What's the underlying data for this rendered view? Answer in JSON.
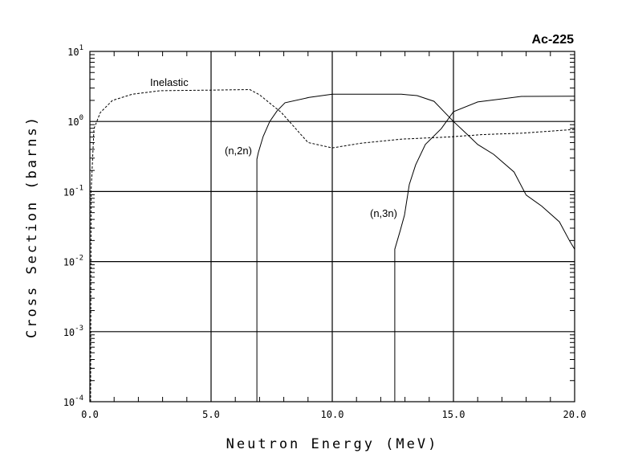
{
  "chart_data": {
    "type": "line",
    "title": "Ac-225",
    "xlabel": "Neutron Energy (MeV)",
    "ylabel": "Cross Section (barns)",
    "xlim": [
      0,
      20
    ],
    "ylim": [
      0.0001,
      10
    ],
    "yscale": "log",
    "grid": true,
    "x_ticks": [
      "0.0",
      "5.0",
      "10.0",
      "15.0",
      "20.0"
    ],
    "x_tick_values": [
      0,
      5,
      10,
      15,
      20
    ],
    "y_ticks": [
      {
        "base": "10",
        "exp": "1",
        "value": 10
      },
      {
        "base": "10",
        "exp": "0",
        "value": 1
      },
      {
        "base": "10",
        "exp": "-1",
        "value": 0.1
      },
      {
        "base": "10",
        "exp": "-2",
        "value": 0.01
      },
      {
        "base": "10",
        "exp": "-3",
        "value": 0.001
      },
      {
        "base": "10",
        "exp": "-4",
        "value": 0.0001
      }
    ],
    "series": [
      {
        "name": "Inelastic",
        "style": "dashed",
        "x": [
          0.03,
          0.05,
          0.17,
          0.43,
          0.93,
          1.75,
          2.9,
          4.9,
          6.6,
          7.0,
          7.9,
          9.0,
          10.0,
          11.2,
          12.85,
          14.8,
          16.2,
          17.8,
          20.0
        ],
        "y": [
          0.0001,
          0.1,
          0.79,
          1.34,
          2.0,
          2.45,
          2.75,
          2.8,
          2.85,
          2.4,
          1.34,
          0.5,
          0.42,
          0.49,
          0.56,
          0.6,
          0.65,
          0.68,
          0.77
        ]
      },
      {
        "name": "(n,2n)",
        "style": "solid",
        "x": [
          6.89,
          6.89,
          6.95,
          7.15,
          7.42,
          7.72,
          8.05,
          9.04,
          10.0,
          12.85,
          13.5,
          14.2,
          15.0,
          15.66,
          16.0,
          16.66,
          17.5,
          18.0,
          18.64,
          19.37,
          19.8,
          20.0
        ],
        "y": [
          0.0001,
          0.29,
          0.36,
          0.61,
          1.0,
          1.41,
          1.85,
          2.2,
          2.45,
          2.45,
          2.34,
          1.94,
          1.0,
          0.61,
          0.47,
          0.34,
          0.19,
          0.089,
          0.062,
          0.037,
          0.0195,
          0.015
        ]
      },
      {
        "name": "(n,3n)",
        "style": "solid",
        "x": [
          12.58,
          12.58,
          12.8,
          12.98,
          13.18,
          13.44,
          13.84,
          14.5,
          15.0,
          16.0,
          17.8,
          20.0
        ],
        "y": [
          0.0001,
          0.015,
          0.0275,
          0.046,
          0.126,
          0.24,
          0.47,
          0.79,
          1.38,
          1.9,
          2.28,
          2.3
        ]
      }
    ],
    "annotations": [
      "Inelastic",
      "(n,2n)",
      "(n,3n)"
    ]
  }
}
